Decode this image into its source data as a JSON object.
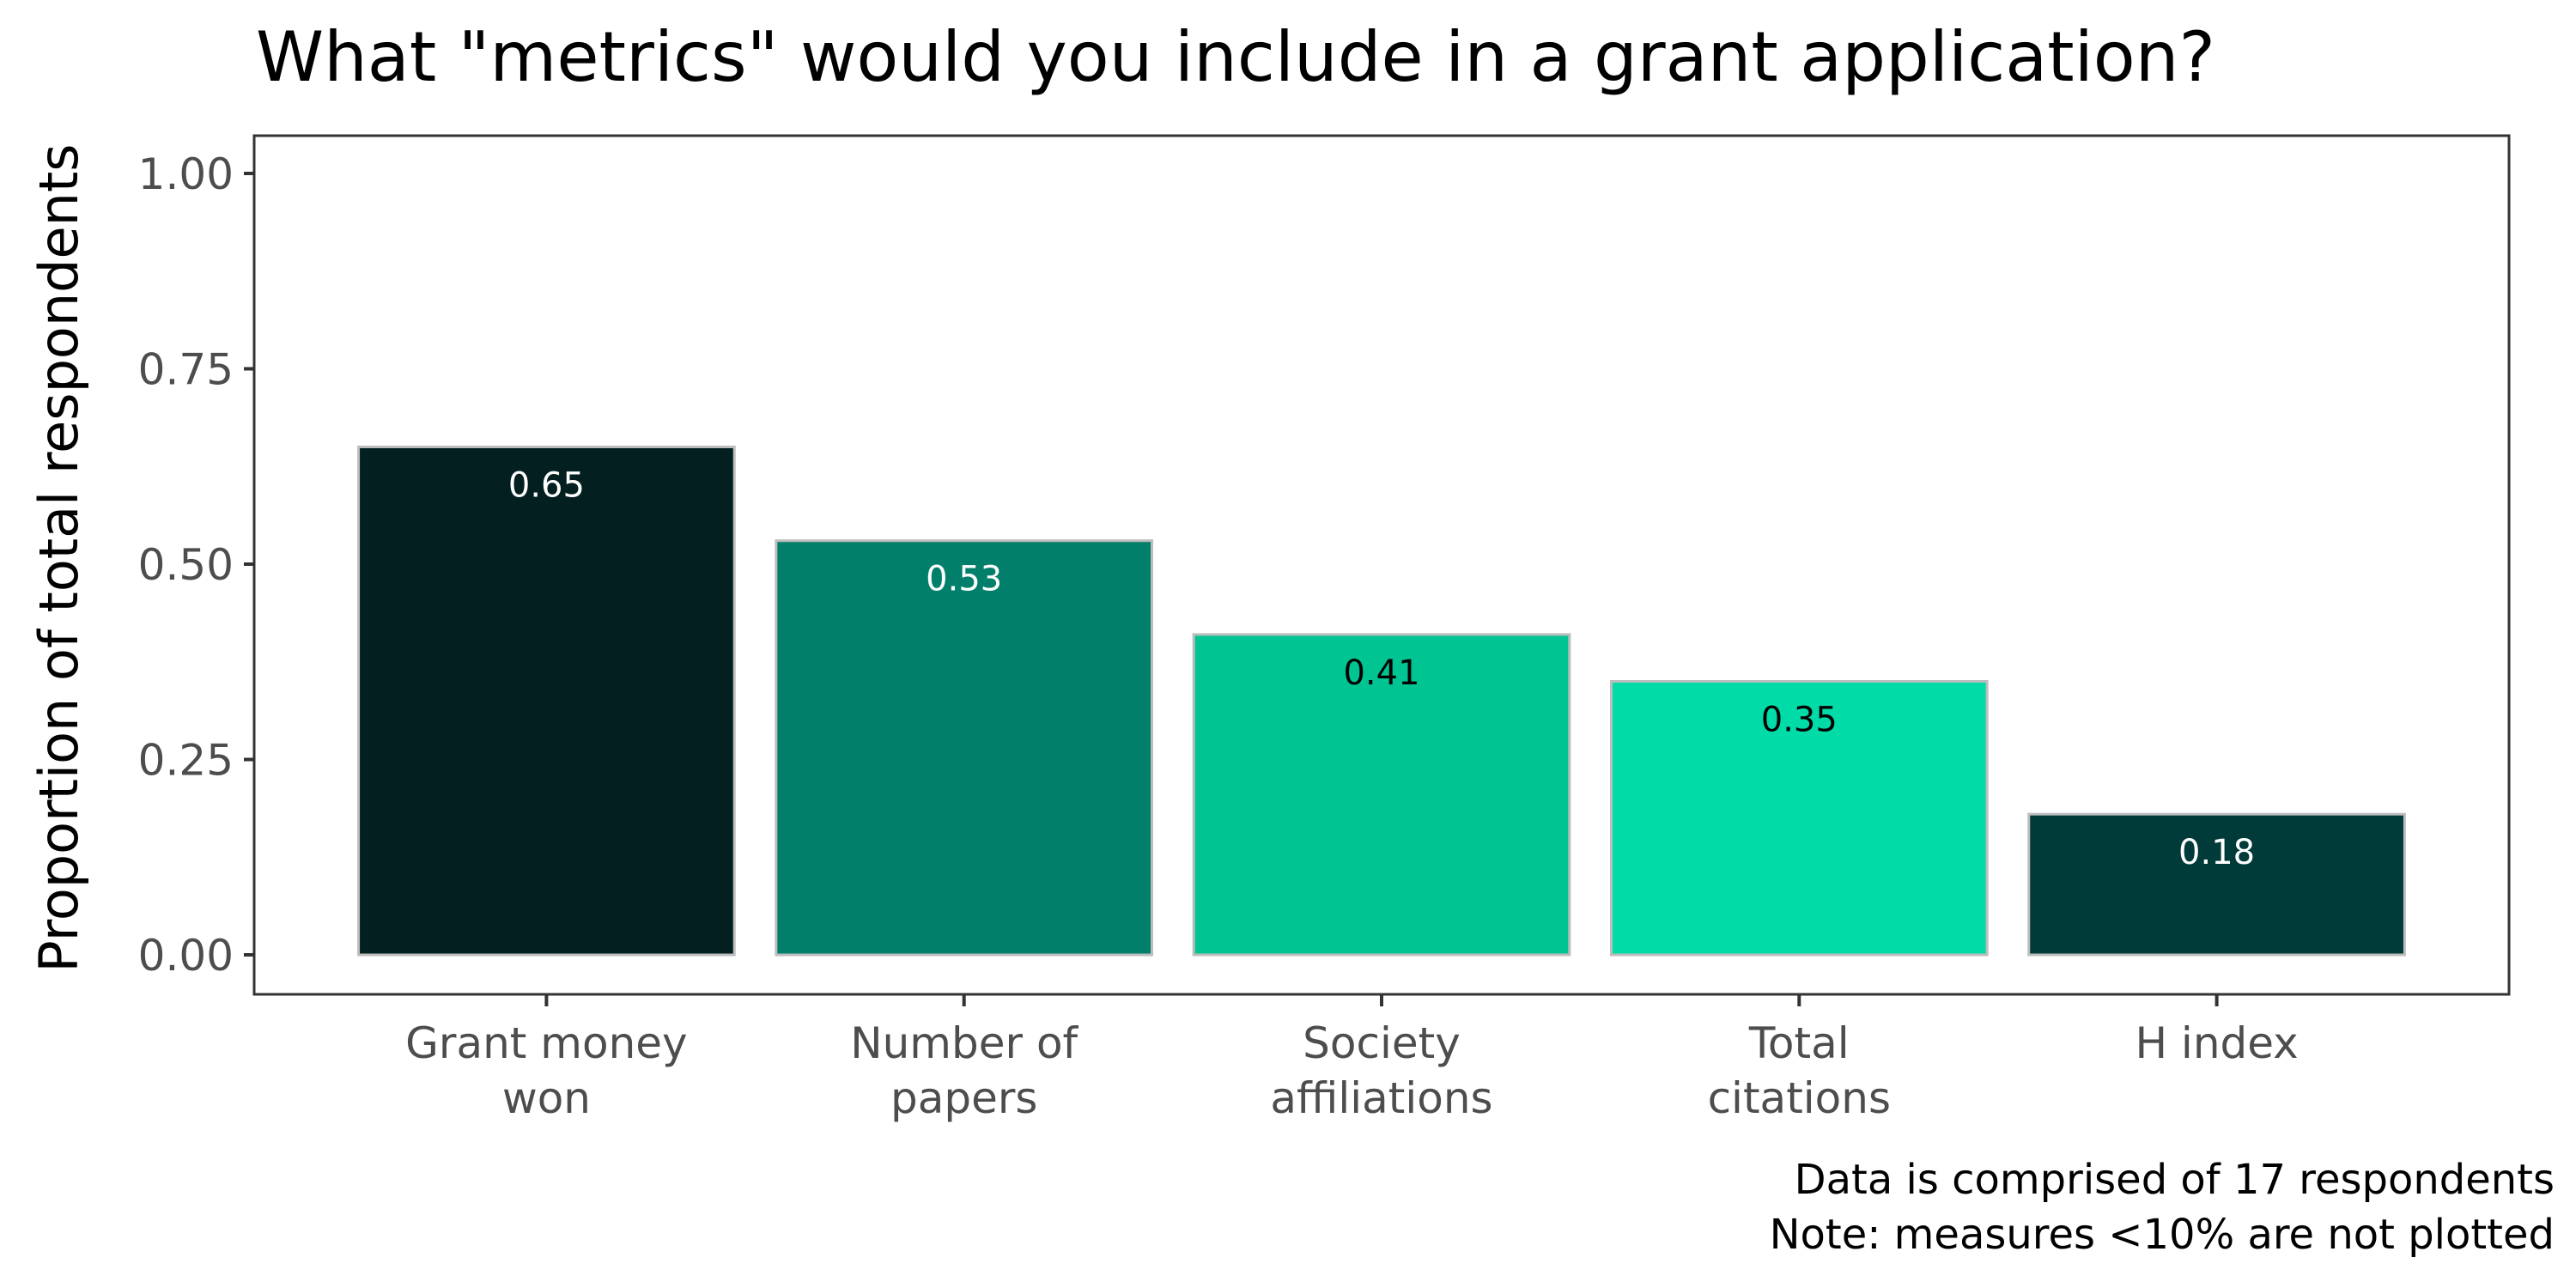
{
  "chart_data": {
    "type": "bar",
    "title": "What \"metrics\" would you include in a grant application?",
    "ylabel": "Proportion of total respondents",
    "xlabel": "",
    "ylim": [
      0,
      1.05
    ],
    "yticks": [
      "0.00",
      "0.25",
      "0.50",
      "0.75",
      "1.00"
    ],
    "ytick_values": [
      0,
      0.25,
      0.5,
      0.75,
      1.0
    ],
    "grid": false,
    "legend": "none",
    "categories": [
      [
        "Grant money",
        "won"
      ],
      [
        "Number of",
        "papers"
      ],
      [
        "Society",
        "affiliations"
      ],
      [
        "Total",
        "citations"
      ],
      [
        "H index"
      ]
    ],
    "values": [
      0.65,
      0.53,
      0.41,
      0.35,
      0.18
    ],
    "value_labels": [
      "0.65",
      "0.53",
      "0.41",
      "0.35",
      "0.18"
    ],
    "colors": [
      "#031f1f",
      "#017f6a",
      "#00c593",
      "#00dba8",
      "#003b3a"
    ],
    "label_colors": [
      "#ffffff",
      "#ffffff",
      "#000000",
      "#000000",
      "#ffffff"
    ],
    "caption": [
      "Data is comprised of 17 respondents",
      "Note: measures <10% are not plotted"
    ]
  }
}
